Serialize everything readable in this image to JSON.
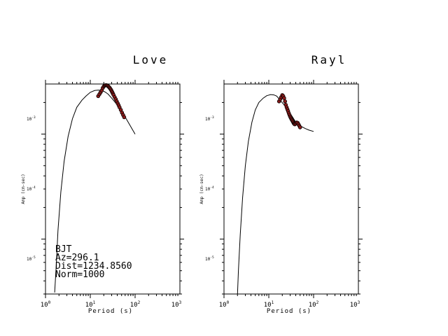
{
  "chart_data": [
    {
      "type": "line",
      "panel_title": "Love",
      "xlabel": "Period (s)",
      "ylabel": "Amp (cm-sec)",
      "xscale": "log",
      "yscale": "log",
      "xlim": [
        1,
        1000
      ],
      "ylim": [
        3e-06,
        0.0003
      ],
      "x_tick_labels": [
        "10^0",
        "10^1",
        "10^2",
        "10^3"
      ],
      "y_tick_labels": [
        "10^-5",
        "10^-4",
        "10^-3"
      ],
      "grid": false,
      "annotations": [
        "BJT",
        "Az=296.1",
        "Dist=1234.8560",
        "Norm=1000"
      ],
      "series": [
        {
          "kind": "model-curve",
          "x": [
            1.6,
            1.75,
            1.9,
            2.2,
            2.6,
            3.2,
            4,
            5,
            6.5,
            8,
            10,
            12.5,
            15,
            18,
            20,
            22,
            25,
            30,
            40,
            55,
            70,
            90,
            100
          ],
          "y": [
            3.1e-06,
            6e-06,
            1.2e-05,
            2.8e-05,
            5.5e-05,
            9.5e-05,
            0.00014,
            0.00018,
            0.00021,
            0.00023,
            0.00025,
            0.00026,
            0.000262,
            0.00026,
            0.000256,
            0.00025,
            0.00024,
            0.00022,
            0.00019,
            0.000155,
            0.00013,
            0.000108,
            0.0001
          ]
        },
        {
          "kind": "observed-points",
          "color": "#8b1a1a",
          "x": [
            15,
            16,
            17,
            18,
            19,
            20,
            21,
            22,
            23,
            24,
            25,
            26,
            27,
            28,
            29,
            30,
            31,
            32,
            33,
            35,
            37,
            39,
            41,
            43,
            45,
            48,
            51,
            54,
            57
          ],
          "y": [
            0.00023,
            0.00024,
            0.00025,
            0.00026,
            0.000275,
            0.000285,
            0.00029,
            0.000292,
            0.000292,
            0.00029,
            0.000286,
            0.000281,
            0.000276,
            0.00027,
            0.000264,
            0.000257,
            0.00025,
            0.000243,
            0.000236,
            0.000225,
            0.000215,
            0.000205,
            0.000196,
            0.000188,
            0.00018,
            0.00017,
            0.00016,
            0.000152,
            0.000145
          ]
        }
      ]
    },
    {
      "type": "line",
      "panel_title": "Rayl",
      "xlabel": "Period (s)",
      "ylabel": "Amp (cm-sec)",
      "xscale": "log",
      "yscale": "log",
      "xlim": [
        1,
        1000
      ],
      "ylim": [
        3e-06,
        0.0003
      ],
      "x_tick_labels": [
        "10^0",
        "10^1",
        "10^2",
        "10^3"
      ],
      "y_tick_labels": [
        "10^-5",
        "10^-4",
        "10^-3"
      ],
      "grid": false,
      "series": [
        {
          "kind": "model-curve",
          "x": [
            2,
            2.1,
            2.3,
            2.6,
            3,
            3.5,
            4.2,
            5,
            6,
            7.5,
            9,
            11,
            13,
            15,
            18,
            22,
            27,
            33,
            40,
            50,
            65,
            80,
            100
          ],
          "y": [
            3e-06,
            5e-06,
            1.1e-05,
            2.5e-05,
            5e-05,
            8.5e-05,
            0.00013,
            0.00017,
            0.0002,
            0.00022,
            0.000232,
            0.000238,
            0.000236,
            0.00023,
            0.00021,
            0.00019,
            0.000168,
            0.000148,
            0.00013,
            0.00012,
            0.000113,
            0.000109,
            0.000106
          ]
        },
        {
          "kind": "observed-points",
          "color": "#8b1a1a",
          "x": [
            17,
            18,
            19,
            20,
            21,
            22,
            23,
            24,
            25,
            26,
            27,
            28,
            29,
            30,
            31,
            32,
            33,
            34,
            35,
            36,
            37,
            38,
            40,
            42,
            44,
            46,
            48,
            50
          ],
          "y": [
            0.000205,
            0.000215,
            0.000225,
            0.000235,
            0.00023,
            0.00022,
            0.000205,
            0.00019,
            0.00018,
            0.000172,
            0.000165,
            0.000158,
            0.000152,
            0.000147,
            0.000143,
            0.000139,
            0.000136,
            0.000133,
            0.00013,
            0.000127,
            0.000125,
            0.000124,
            0.000126,
            0.000129,
            0.000128,
            0.000124,
            0.00012,
            0.000116
          ]
        }
      ]
    }
  ]
}
